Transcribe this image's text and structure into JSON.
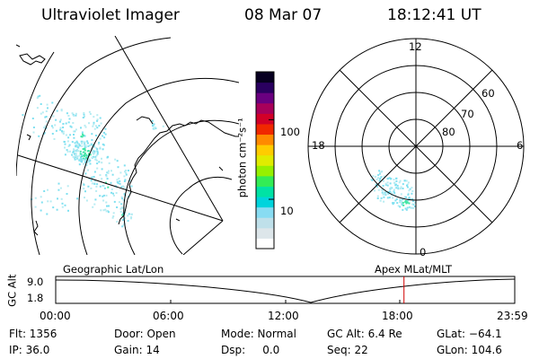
{
  "header": {
    "instrument": "Ultraviolet Imager",
    "date": "08 Mar 07",
    "time": "18:12:41 UT"
  },
  "colorbar": {
    "unit_label": "photon cm⁻²s⁻¹",
    "tick_labels": [
      "100",
      "10"
    ],
    "ticks": [
      100,
      10
    ],
    "range": [
      2.4,
      400
    ],
    "colors": [
      "#ffffff",
      "#dde6ea",
      "#bfe0ea",
      "#88dcf2",
      "#00d4dc",
      "#00e2a4",
      "#33ec55",
      "#96f000",
      "#e0ec00",
      "#ffcc00",
      "#ff8a00",
      "#f02800",
      "#d20028",
      "#a8005a",
      "#6a0080",
      "#2a0060",
      "#070020"
    ],
    "scale": "log"
  },
  "geo_panel": {
    "outline_color": "#000000",
    "aurora_colors": [
      "#3fe6a5",
      "#7fe0f0",
      "#b7ecf2"
    ]
  },
  "polar_panel": {
    "clock_labels": [
      "12",
      "18",
      "6",
      "0"
    ],
    "lat_labels": [
      "60",
      "70",
      "80"
    ],
    "lat_circles": [
      50,
      60,
      70,
      80
    ]
  },
  "timeline": {
    "left_title": "Geographic Lat/Lon",
    "right_title": "Apex  MLat/MLT",
    "axis_title": "GC Alt",
    "y_ticks": [
      "9.0",
      "1.8"
    ],
    "x_ticks": [
      "00:00",
      "06:00",
      "12:00",
      "18:00",
      "23:59"
    ],
    "current_time_hours": 18.21,
    "marker_color": "#d00000"
  },
  "status": {
    "flt": "Flt: 1356",
    "ip": "IP: 36.0",
    "door": "Door: Open",
    "gain": "Gain: 14",
    "mode": "Mode: Normal",
    "dsp": "Dsp:     0.0",
    "gc_alt": "GC Alt: 6.4 Re",
    "seq": "Seq: 22",
    "glat": "GLat: −64.1",
    "glon": "GLon: 104.6"
  }
}
